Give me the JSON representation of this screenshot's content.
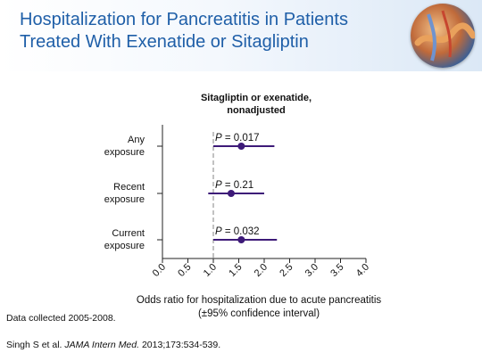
{
  "slide": {
    "title_line1": "Hospitalization for Pancreatitis in Patients",
    "title_line2": "Treated With Exenatide or Sitagliptin"
  },
  "chart_data": {
    "type": "forest",
    "title_line1": "Sitagliptin or exenatide,",
    "title_line2": "nonadjusted",
    "xlabel_line1": "Odds ratio for hospitalization due to acute pancreatitis",
    "xlabel_line2": "(±95% confidence interval)",
    "xlim": [
      0.0,
      4.0
    ],
    "xticks": [
      "0.0",
      "0.5",
      "1.0",
      "1.5",
      "2.0",
      "2.5",
      "3.0",
      "3.5",
      "4.0"
    ],
    "reference_line": 1.0,
    "rows": [
      {
        "label_line1": "Any",
        "label_line2": "exposure",
        "or": 1.55,
        "ci_low": 1.0,
        "ci_high": 2.2,
        "p_label": "P",
        "p_value": "= 0.017"
      },
      {
        "label_line1": "Recent",
        "label_line2": "exposure",
        "or": 1.35,
        "ci_low": 0.9,
        "ci_high": 2.0,
        "p_label": "P",
        "p_value": "= 0.21"
      },
      {
        "label_line1": "Current",
        "label_line2": "exposure",
        "or": 1.55,
        "ci_low": 1.0,
        "ci_high": 2.25,
        "p_label": "P",
        "p_value": "= 0.032"
      }
    ],
    "colors": {
      "marker": "#3d1a78",
      "axis": "#222222",
      "reference": "#999999"
    }
  },
  "footnotes": {
    "data_note": "Data collected 2005-2008.",
    "citation_authors": "Singh S et al.",
    "citation_journal": "JAMA Intern Med.",
    "citation_rest": "2013;173:534-539."
  },
  "thumbnail": {
    "icon": "pancreas-anatomy-image"
  }
}
